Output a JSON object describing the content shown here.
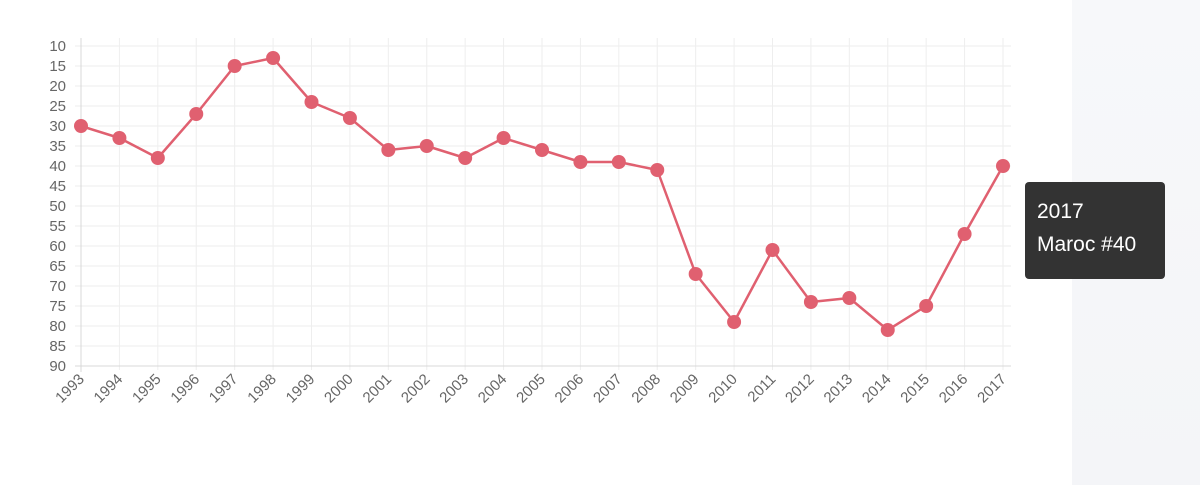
{
  "chart_data": {
    "type": "line",
    "x": [
      "1993",
      "1994",
      "1995",
      "1996",
      "1997",
      "1998",
      "1999",
      "2000",
      "2001",
      "2002",
      "2003",
      "2004",
      "2005",
      "2006",
      "2007",
      "2008",
      "2009",
      "2010",
      "2011",
      "2012",
      "2013",
      "2014",
      "2015",
      "2016",
      "2017"
    ],
    "series": [
      {
        "color": "#e06070",
        "values": [
          30,
          33,
          38,
          27,
          15,
          13,
          24,
          28,
          36,
          35,
          38,
          33,
          36,
          39,
          39,
          41,
          67,
          79,
          61,
          74,
          73,
          81,
          75,
          57,
          40
        ]
      }
    ],
    "ylim": [
      10,
      90
    ],
    "y_reversed": true,
    "y_ticks": [
      10,
      15,
      20,
      25,
      30,
      35,
      40,
      45,
      50,
      55,
      60,
      65,
      70,
      75,
      80,
      85,
      90
    ],
    "grid": true,
    "xlabel": "",
    "ylabel": ""
  },
  "tooltip": {
    "title": "2017",
    "body": "Maroc #40"
  }
}
